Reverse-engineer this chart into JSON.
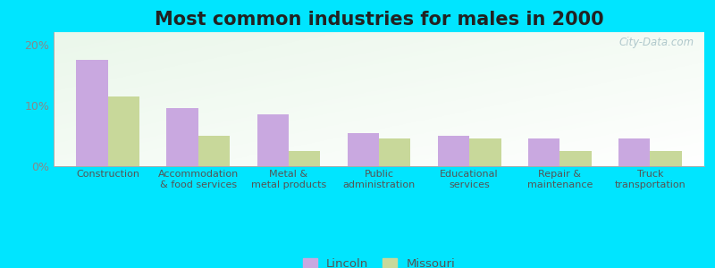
{
  "title": "Most common industries for males in 2000",
  "categories": [
    "Construction",
    "Accommodation\n& food services",
    "Metal &\nmetal products",
    "Public\nadministration",
    "Educational\nservices",
    "Repair &\nmaintenance",
    "Truck\ntransportation"
  ],
  "lincoln_values": [
    17.5,
    9.5,
    8.5,
    5.5,
    5.0,
    4.5,
    4.5
  ],
  "missouri_values": [
    11.5,
    5.0,
    2.5,
    4.5,
    4.5,
    2.5,
    2.5
  ],
  "lincoln_color": "#c9a8e0",
  "missouri_color": "#c8d89a",
  "outer_background": "#00e5ff",
  "ylim": [
    0,
    22
  ],
  "yticks": [
    0,
    10,
    20
  ],
  "ytick_labels": [
    "0%",
    "10%",
    "20%"
  ],
  "title_fontsize": 15,
  "legend_lincoln": "Lincoln",
  "legend_missouri": "Missouri",
  "bar_width": 0.35
}
